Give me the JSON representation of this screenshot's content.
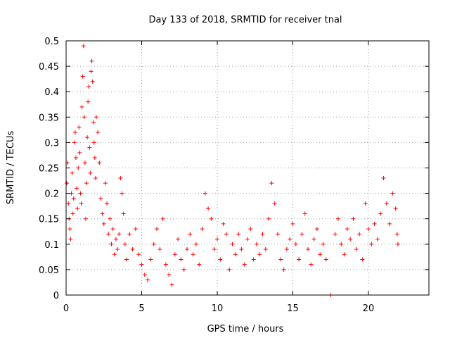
{
  "chart_data": {
    "type": "scatter",
    "title": "Day 133 of 2018, SRMTID for receiver tnal",
    "xlabel": "GPS time / hours",
    "ylabel": "SRMTID / TECUs",
    "xlim": [
      0,
      24
    ],
    "ylim": [
      0,
      0.5
    ],
    "xticks": [
      "0",
      "5",
      "10",
      "15",
      "20"
    ],
    "yticks": [
      "0",
      "0.05",
      "0.1",
      "0.15",
      "0.2",
      "0.25",
      "0.3",
      "0.35",
      "0.4",
      "0.45",
      "0.5"
    ],
    "grid": true,
    "marker": "+",
    "color": "#ff0000",
    "series": [
      {
        "points": [
          [
            0.05,
            0.22
          ],
          [
            0.1,
            0.26
          ],
          [
            0.15,
            0.18
          ],
          [
            0.2,
            0.15
          ],
          [
            0.25,
            0.13
          ],
          [
            0.3,
            0.11
          ],
          [
            0.35,
            0.2
          ],
          [
            0.4,
            0.24
          ],
          [
            0.45,
            0.16
          ],
          [
            0.5,
            0.19
          ],
          [
            0.55,
            0.3
          ],
          [
            0.6,
            0.32
          ],
          [
            0.65,
            0.27
          ],
          [
            0.7,
            0.21
          ],
          [
            0.75,
            0.17
          ],
          [
            0.8,
            0.25
          ],
          [
            0.85,
            0.33
          ],
          [
            0.9,
            0.28
          ],
          [
            0.95,
            0.2
          ],
          [
            1.0,
            0.18
          ],
          [
            1.05,
            0.37
          ],
          [
            1.1,
            0.43
          ],
          [
            1.15,
            0.49
          ],
          [
            1.2,
            0.35
          ],
          [
            1.25,
            0.26
          ],
          [
            1.3,
            0.15
          ],
          [
            1.35,
            0.22
          ],
          [
            1.4,
            0.31
          ],
          [
            1.45,
            0.38
          ],
          [
            1.5,
            0.41
          ],
          [
            1.55,
            0.29
          ],
          [
            1.6,
            0.24
          ],
          [
            1.65,
            0.44
          ],
          [
            1.7,
            0.46
          ],
          [
            1.75,
            0.42
          ],
          [
            1.8,
            0.34
          ],
          [
            1.85,
            0.3
          ],
          [
            1.9,
            0.27
          ],
          [
            1.95,
            0.23
          ],
          [
            2.0,
            0.35
          ],
          [
            2.1,
            0.32
          ],
          [
            2.2,
            0.26
          ],
          [
            2.3,
            0.19
          ],
          [
            2.4,
            0.16
          ],
          [
            2.5,
            0.14
          ],
          [
            2.6,
            0.22
          ],
          [
            2.7,
            0.18
          ],
          [
            2.8,
            0.12
          ],
          [
            2.9,
            0.15
          ],
          [
            3.0,
            0.1
          ],
          [
            3.1,
            0.13
          ],
          [
            3.2,
            0.08
          ],
          [
            3.3,
            0.11
          ],
          [
            3.4,
            0.09
          ],
          [
            3.5,
            0.12
          ],
          [
            3.6,
            0.23
          ],
          [
            3.7,
            0.2
          ],
          [
            3.8,
            0.16
          ],
          [
            3.9,
            0.1
          ],
          [
            4.0,
            0.07
          ],
          [
            4.2,
            0.12
          ],
          [
            4.4,
            0.09
          ],
          [
            4.6,
            0.13
          ],
          [
            4.8,
            0.08
          ],
          [
            5.0,
            0.06
          ],
          [
            5.2,
            0.04
          ],
          [
            5.4,
            0.03
          ],
          [
            5.6,
            0.07
          ],
          [
            5.8,
            0.1
          ],
          [
            6.0,
            0.13
          ],
          [
            6.2,
            0.09
          ],
          [
            6.4,
            0.15
          ],
          [
            6.6,
            0.06
          ],
          [
            6.8,
            0.04
          ],
          [
            7.0,
            0.02
          ],
          [
            7.2,
            0.08
          ],
          [
            7.4,
            0.11
          ],
          [
            7.6,
            0.07
          ],
          [
            7.8,
            0.05
          ],
          [
            8.0,
            0.09
          ],
          [
            8.2,
            0.12
          ],
          [
            8.4,
            0.08
          ],
          [
            8.6,
            0.1
          ],
          [
            8.8,
            0.06
          ],
          [
            9.0,
            0.13
          ],
          [
            9.2,
            0.2
          ],
          [
            9.4,
            0.17
          ],
          [
            9.6,
            0.15
          ],
          [
            9.8,
            0.09
          ],
          [
            10.0,
            0.11
          ],
          [
            10.2,
            0.07
          ],
          [
            10.4,
            0.14
          ],
          [
            10.6,
            0.12
          ],
          [
            10.8,
            0.05
          ],
          [
            11.0,
            0.1
          ],
          [
            11.2,
            0.08
          ],
          [
            11.4,
            0.12
          ],
          [
            11.6,
            0.09
          ],
          [
            11.8,
            0.06
          ],
          [
            12.0,
            0.11
          ],
          [
            12.2,
            0.13
          ],
          [
            12.4,
            0.07
          ],
          [
            12.6,
            0.1
          ],
          [
            12.8,
            0.08
          ],
          [
            13.0,
            0.12
          ],
          [
            13.2,
            0.09
          ],
          [
            13.4,
            0.15
          ],
          [
            13.6,
            0.22
          ],
          [
            13.8,
            0.18
          ],
          [
            14.0,
            0.12
          ],
          [
            14.2,
            0.07
          ],
          [
            14.4,
            0.05
          ],
          [
            14.6,
            0.09
          ],
          [
            14.8,
            0.11
          ],
          [
            15.0,
            0.14
          ],
          [
            15.2,
            0.1
          ],
          [
            15.4,
            0.07
          ],
          [
            15.6,
            0.12
          ],
          [
            15.8,
            0.16
          ],
          [
            16.0,
            0.09
          ],
          [
            16.2,
            0.06
          ],
          [
            16.4,
            0.11
          ],
          [
            16.6,
            0.13
          ],
          [
            16.8,
            0.08
          ],
          [
            17.0,
            0.1
          ],
          [
            17.2,
            0.07
          ],
          [
            17.5,
            0.0
          ],
          [
            17.8,
            0.12
          ],
          [
            18.0,
            0.15
          ],
          [
            18.2,
            0.1
          ],
          [
            18.4,
            0.08
          ],
          [
            18.6,
            0.13
          ],
          [
            18.8,
            0.11
          ],
          [
            19.0,
            0.15
          ],
          [
            19.2,
            0.09
          ],
          [
            19.4,
            0.12
          ],
          [
            19.6,
            0.07
          ],
          [
            19.8,
            0.18
          ],
          [
            20.0,
            0.13
          ],
          [
            20.2,
            0.1
          ],
          [
            20.4,
            0.14
          ],
          [
            20.6,
            0.11
          ],
          [
            20.8,
            0.16
          ],
          [
            21.0,
            0.23
          ],
          [
            21.2,
            0.18
          ],
          [
            21.4,
            0.14
          ],
          [
            21.6,
            0.2
          ],
          [
            21.8,
            0.17
          ],
          [
            21.9,
            0.12
          ],
          [
            21.95,
            0.1
          ]
        ]
      }
    ]
  }
}
